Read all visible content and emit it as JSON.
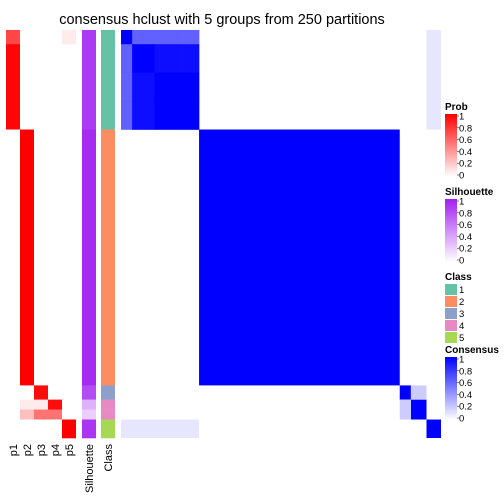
{
  "chart_data": {
    "type": "heatmap",
    "title": "consensus hclust with 5 groups from 250 partitions",
    "n_groups": 5,
    "annotation_columns": [
      "p1",
      "p2",
      "p3",
      "p4",
      "p5",
      "Silhouette",
      "Class"
    ],
    "groups": [
      {
        "class": 1,
        "p": [
          0.72,
          0,
          0,
          0,
          0.08
        ],
        "silhouette": 0.88,
        "rows": [
          {
            "n": 1,
            "p": [
              0.72,
              0,
              0,
              0,
              0.08
            ],
            "silhouette": 0.88
          },
          {
            "n": 6,
            "p": [
              0.98,
              0,
              0,
              0,
              0.0
            ],
            "silhouette": 0.88
          }
        ]
      },
      {
        "class": 2,
        "p": [
          0,
          1,
          0,
          0,
          0
        ],
        "silhouette": 0.95,
        "rows": [
          {
            "n": 18,
            "p": [
              0,
              1,
              0,
              0,
              0
            ],
            "silhouette": 0.95
          }
        ]
      },
      {
        "class": 3,
        "p": [
          0,
          0,
          1,
          0,
          0
        ],
        "silhouette": 0.8,
        "rows": [
          {
            "n": 1,
            "p": [
              0,
              0,
              0.95,
              0,
              0
            ],
            "silhouette": 0.8
          }
        ]
      },
      {
        "class": 4,
        "p": [
          0,
          0.12,
          0.22,
          0.9,
          0
        ],
        "silhouette": 0.28,
        "rows": [
          {
            "n": 0.7,
            "p": [
              0,
              0.08,
              0.08,
              0.95,
              0
            ],
            "silhouette": 0.35
          },
          {
            "n": 0.7,
            "p": [
              0,
              0.25,
              0.55,
              0.55,
              0
            ],
            "silhouette": 0.22
          }
        ]
      },
      {
        "class": 5,
        "p": [
          0,
          0,
          0,
          0,
          1
        ],
        "silhouette": 0.9,
        "rows": [
          {
            "n": 1.3,
            "p": [
              0,
              0,
              0,
              0,
              1
            ],
            "silhouette": 0.9
          }
        ]
      }
    ],
    "consensus_sub_blocks": {
      "group1": [
        [
          1.0,
          0.62,
          0.62,
          0.62
        ],
        [
          0.62,
          1.0,
          0.95,
          0.95
        ],
        [
          0.62,
          0.95,
          1.0,
          1.0
        ],
        [
          0.62,
          0.95,
          1.0,
          1.0
        ]
      ],
      "group1_split": [
        1,
        2,
        2,
        2
      ],
      "off_diagonal": {
        "g1_g5": 0.1,
        "g3_g4": 0.2
      }
    },
    "legends": [
      {
        "title": "Prob",
        "ticks": [
          "1",
          "0.8",
          "0.6",
          "0.4",
          "0.2",
          "0"
        ],
        "colors": [
          "#ff0000",
          "#ffffff"
        ]
      },
      {
        "title": "Silhouette",
        "ticks": [
          "1",
          "0.8",
          "0.6",
          "0.4",
          "0.2",
          "0"
        ],
        "colors": [
          "#a020f0",
          "#ffffff"
        ]
      },
      {
        "title": "Class",
        "items": [
          {
            "label": "1",
            "color": "#66c2a5"
          },
          {
            "label": "2",
            "color": "#fc8d62"
          },
          {
            "label": "3",
            "color": "#8da0cb"
          },
          {
            "label": "4",
            "color": "#e78ac3"
          },
          {
            "label": "5",
            "color": "#a6d854"
          }
        ]
      },
      {
        "title": "Consensus",
        "ticks": [
          "1",
          "0.8",
          "0.6",
          "0.4",
          "0.2",
          "0"
        ],
        "colors": [
          "#0000ff",
          "#ffffff"
        ]
      }
    ]
  }
}
